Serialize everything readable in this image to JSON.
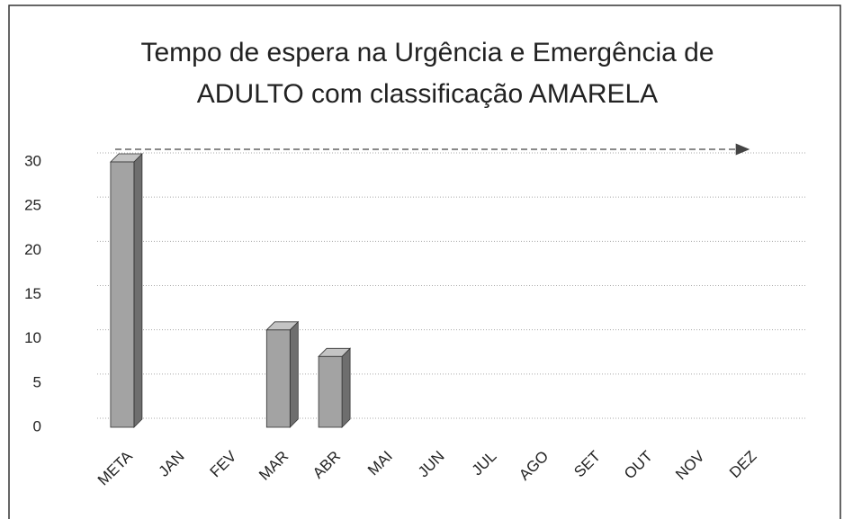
{
  "chart_data": {
    "type": "bar",
    "title": "Tempo de espera na Urgência e Emergência de ADULTO com classificação AMARELA",
    "categories": [
      "META",
      "JAN",
      "FEV",
      "MAR",
      "ABR",
      "MAI",
      "JUN",
      "JUL",
      "AGO",
      "SET",
      "OUT",
      "NOV",
      "DEZ"
    ],
    "values": [
      30,
      null,
      null,
      11,
      8,
      null,
      null,
      null,
      null,
      null,
      null,
      null,
      null
    ],
    "color": "#a3a3a3",
    "ylim": [
      0,
      30
    ],
    "yticks": [
      0,
      5,
      10,
      15,
      20,
      25,
      30
    ],
    "grid": true
  }
}
